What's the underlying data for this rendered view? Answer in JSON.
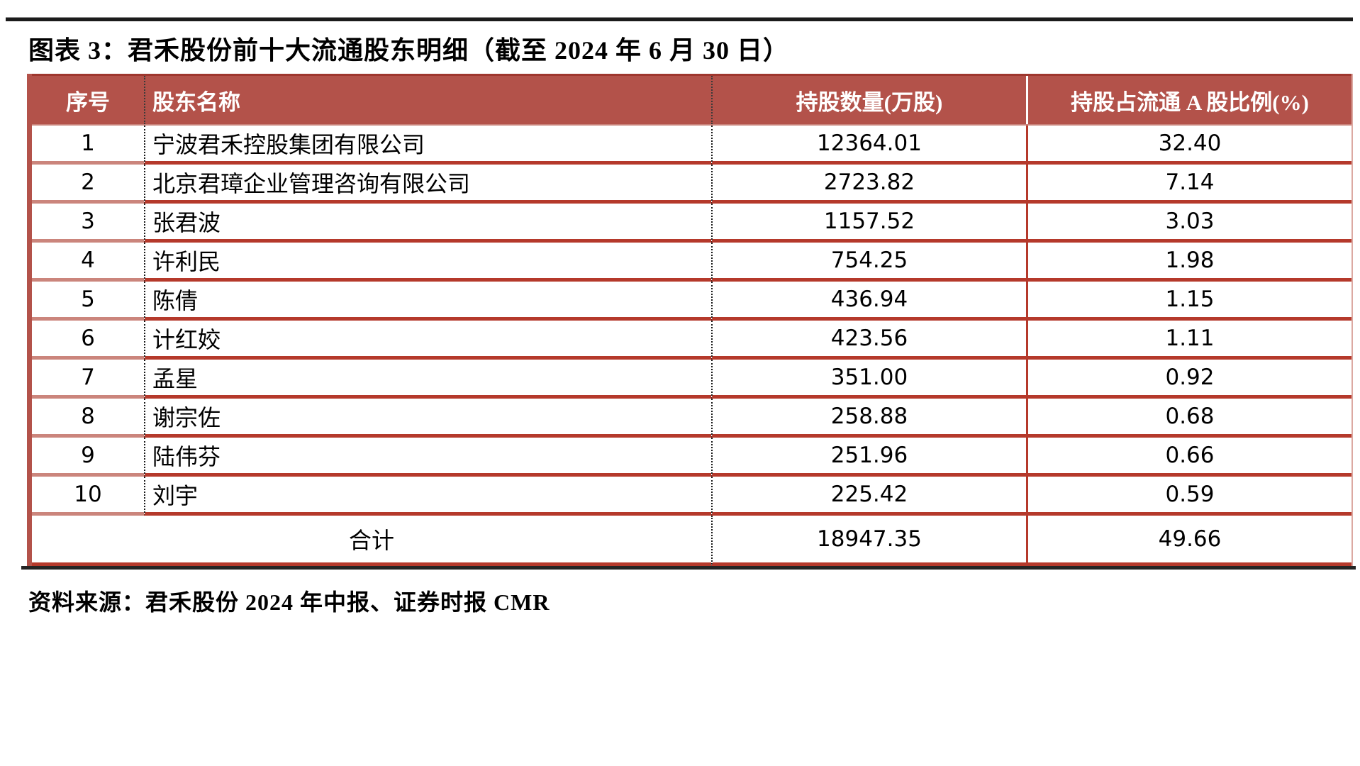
{
  "page": {
    "title": "图表 3：君禾股份前十大流通股东明细（截至 2024 年 6 月 30 日）",
    "source": "资料来源：君禾股份 2024 年中报、证券时报 CMR"
  },
  "colors": {
    "header_bg": "#B3524A",
    "row_border_red": "#B5392B",
    "row_border_light": "#CB857C",
    "left_bar": "#B3524A",
    "rule_dark": "#1B1B1B",
    "header_text": "#FFFFFF"
  },
  "table": {
    "headers": [
      "序号",
      "股东名称",
      "持股数量(万股)",
      "持股占流通 A 股比例(%)"
    ],
    "rows": [
      {
        "no": "1",
        "name": "宁波君禾控股集团有限公司",
        "shares": "12364.01",
        "pct": "32.40"
      },
      {
        "no": "2",
        "name": "北京君璋企业管理咨询有限公司",
        "shares": "2723.82",
        "pct": "7.14"
      },
      {
        "no": "3",
        "name": "张君波",
        "shares": "1157.52",
        "pct": "3.03"
      },
      {
        "no": "4",
        "name": "许利民",
        "shares": "754.25",
        "pct": "1.98"
      },
      {
        "no": "5",
        "name": "陈倩",
        "shares": "436.94",
        "pct": "1.15"
      },
      {
        "no": "6",
        "name": "计红姣",
        "shares": "423.56",
        "pct": "1.11"
      },
      {
        "no": "7",
        "name": "孟星",
        "shares": "351.00",
        "pct": "0.92"
      },
      {
        "no": "8",
        "name": "谢宗佐",
        "shares": "258.88",
        "pct": "0.68"
      },
      {
        "no": "9",
        "name": "陆伟芬",
        "shares": "251.96",
        "pct": "0.66"
      },
      {
        "no": "10",
        "name": "刘宇",
        "shares": "225.42",
        "pct": "0.59"
      }
    ],
    "total": {
      "label": "合计",
      "shares": "18947.35",
      "pct": "49.66"
    }
  }
}
